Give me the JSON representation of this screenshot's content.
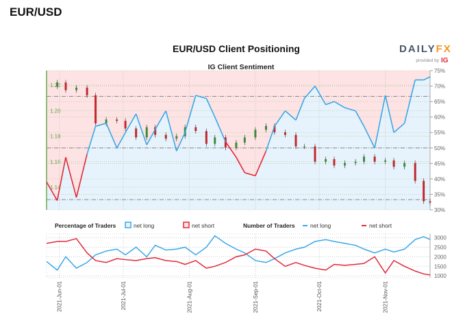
{
  "page": {
    "heading": "EUR/USD"
  },
  "logo": {
    "brand_left": "DAILY",
    "brand_right": "FX",
    "provided_by": "provided by",
    "provider": "IG",
    "color_left": "#4a5568",
    "color_right": "#f7941d",
    "provider_color": "#e0282e"
  },
  "chart_data": {
    "type": "line",
    "title": "EUR/USD Client Positioning",
    "subtitle": "IG Client Sentiment",
    "colors": {
      "net_long": "#3aa6e8",
      "net_short": "#e0283a",
      "bull_candle": "#3b8a3b",
      "bear_candle": "#c0282c",
      "price_axis": "#6aa84f",
      "short_bg": "#fde3e3",
      "long_bg": "#e6f3fc"
    },
    "dates": [
      "2021-05-26",
      "2021-05-31",
      "2021-06-04",
      "2021-06-09",
      "2021-06-14",
      "2021-06-18",
      "2021-06-23",
      "2021-06-28",
      "2021-07-02",
      "2021-07-07",
      "2021-07-12",
      "2021-07-16",
      "2021-07-21",
      "2021-07-26",
      "2021-07-30",
      "2021-08-04",
      "2021-08-09",
      "2021-08-13",
      "2021-08-18",
      "2021-08-23",
      "2021-08-27",
      "2021-09-01",
      "2021-09-06",
      "2021-09-10",
      "2021-09-15",
      "2021-09-20",
      "2021-09-24",
      "2021-09-29",
      "2021-10-04",
      "2021-10-08",
      "2021-10-13",
      "2021-10-18",
      "2021-10-22",
      "2021-10-27",
      "2021-11-01",
      "2021-11-05",
      "2021-11-10",
      "2021-11-15",
      "2021-11-19",
      "2021-11-22"
    ],
    "price_close": [
      1.219,
      1.222,
      1.216,
      1.218,
      1.212,
      1.19,
      1.193,
      1.192,
      1.186,
      1.179,
      1.187,
      1.181,
      1.178,
      1.18,
      1.187,
      1.184,
      1.174,
      1.179,
      1.171,
      1.175,
      1.179,
      1.185,
      1.188,
      1.183,
      1.181,
      1.172,
      1.172,
      1.16,
      1.162,
      1.157,
      1.159,
      1.16,
      1.164,
      1.16,
      1.161,
      1.156,
      1.159,
      1.145,
      1.129,
      1.128
    ],
    "pct_net_long": [
      39,
      33,
      47,
      34,
      48,
      57,
      58,
      50,
      55,
      61,
      51,
      56,
      62,
      49,
      55,
      67,
      66,
      60,
      52,
      47,
      42,
      41,
      49,
      57,
      62,
      59,
      66,
      70,
      64,
      65,
      63,
      62,
      57,
      50,
      67,
      55,
      58,
      72,
      72,
      73
    ],
    "traders_net_long": [
      1750,
      1300,
      2000,
      1400,
      1700,
      2100,
      2300,
      2400,
      2100,
      2500,
      2000,
      2600,
      2350,
      2400,
      2500,
      2100,
      2500,
      3100,
      2700,
      2400,
      2200,
      1800,
      1700,
      1900,
      2200,
      2400,
      2500,
      2800,
      2900,
      2800,
      2700,
      2600,
      2400,
      2200,
      2400,
      2250,
      2400,
      2900,
      3050,
      2900
    ],
    "traders_net_short": [
      2700,
      2800,
      2800,
      2950,
      2200,
      1800,
      1700,
      1900,
      1850,
      1800,
      1900,
      1950,
      1800,
      1750,
      1600,
      1800,
      1400,
      1500,
      1700,
      2000,
      2100,
      2400,
      2300,
      1900,
      1500,
      1700,
      1550,
      1400,
      1300,
      1600,
      1550,
      1600,
      1650,
      2000,
      1150,
      1800,
      1500,
      1250,
      1100,
      1050
    ],
    "price_axis": {
      "ticks": [
        "1.14",
        "1.16",
        "1.18",
        "1.20",
        "1.22"
      ],
      "range": [
        1.1223,
        1.2313
      ]
    },
    "pct_axis": {
      "ticks": [
        "30%",
        "35%",
        "40%",
        "45%",
        "50%",
        "55%",
        "60%",
        "65%",
        "70%",
        "75%"
      ],
      "range": [
        30,
        75
      ]
    },
    "traders_axis": {
      "ticks": [
        "1000",
        "1500",
        "2000",
        "2500",
        "3000"
      ],
      "range": [
        900,
        3200
      ]
    },
    "x_ticks": [
      "2021-Jun-01",
      "2021-Jul-01",
      "2021-Aug-01",
      "2021-Sep-01",
      "2021-Oct-01",
      "2021-Nov-01"
    ],
    "x_tick_dates": [
      "2021-06-01",
      "2021-07-01",
      "2021-08-01",
      "2021-09-01",
      "2021-10-01",
      "2021-11-01"
    ],
    "x_range": [
      "2021-05-26",
      "2021-11-22"
    ],
    "reference_lines_pct": [
      66.7,
      50,
      33.3
    ],
    "grid": true,
    "legend": {
      "pct_title": "Percentage of Traders",
      "pct_long": "net long",
      "pct_short": "net short",
      "num_title": "Number of Traders",
      "num_long": "net long",
      "num_short": "net short",
      "placement": "between-panels"
    }
  }
}
